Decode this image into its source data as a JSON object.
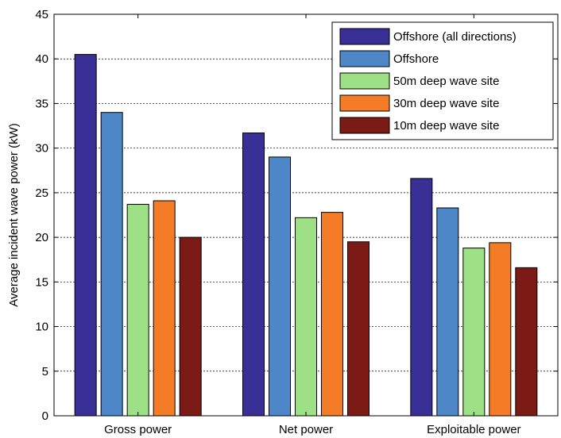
{
  "chart_data": {
    "type": "bar",
    "title": "",
    "xlabel": "",
    "ylabel": "Average incident wave power (kW)",
    "ylim": [
      0,
      45
    ],
    "yticks": [
      0,
      5,
      10,
      15,
      20,
      25,
      30,
      35,
      40,
      45
    ],
    "grid": "horizontal dashed",
    "legend_position": "top-right",
    "categories": [
      "Gross power",
      "Net power",
      "Exploitable power"
    ],
    "series": [
      {
        "name": "Offshore (all directions)",
        "color": "#3a2f96",
        "values": [
          40.5,
          31.7,
          26.6
        ]
      },
      {
        "name": "Offshore",
        "color": "#4d87c7",
        "values": [
          34.0,
          29.0,
          23.3
        ]
      },
      {
        "name": "50m deep wave site",
        "color": "#9de085",
        "values": [
          23.7,
          22.2,
          18.8
        ]
      },
      {
        "name": "30m deep wave site",
        "color": "#f47c26",
        "values": [
          24.1,
          22.8,
          19.4
        ]
      },
      {
        "name": "10m deep wave site",
        "color": "#7c1a15",
        "values": [
          20.0,
          19.5,
          16.6
        ]
      }
    ]
  }
}
